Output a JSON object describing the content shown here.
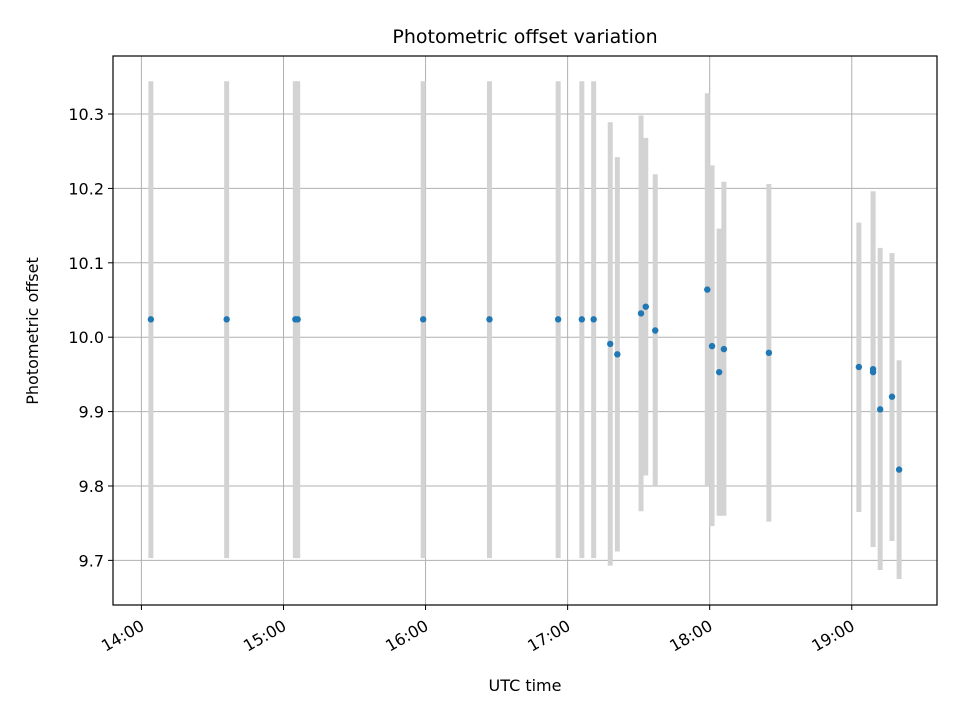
{
  "chart_data": {
    "type": "scatter",
    "title": "Photometric offset variation",
    "xlabel": "UTC time",
    "ylabel": "Photometric offset",
    "x_axis_kind": "time",
    "x_ticks": [
      "14:00",
      "15:00",
      "16:00",
      "17:00",
      "18:00",
      "19:00"
    ],
    "xlim": [
      "13:48",
      "19:36"
    ],
    "y_ticks": [
      9.7,
      9.8,
      9.9,
      10.0,
      10.1,
      10.2,
      10.3
    ],
    "ylim": [
      9.64,
      10.378
    ],
    "grid": true,
    "legend": "none",
    "colors": {
      "marker": "#1f77b4",
      "errorbar": "#d3d3d3",
      "grid": "#b0b0b0"
    },
    "points": [
      {
        "x": "14:04",
        "y": 10.024,
        "ylow": 9.703,
        "yhigh": 10.344
      },
      {
        "x": "14:36",
        "y": 10.024,
        "ylow": 9.703,
        "yhigh": 10.344
      },
      {
        "x": "15:05",
        "y": 10.024,
        "ylow": 9.703,
        "yhigh": 10.344
      },
      {
        "x": "15:06",
        "y": 10.024,
        "ylow": 9.703,
        "yhigh": 10.344
      },
      {
        "x": "15:59",
        "y": 10.024,
        "ylow": 9.703,
        "yhigh": 10.344
      },
      {
        "x": "16:27",
        "y": 10.024,
        "ylow": 9.703,
        "yhigh": 10.344
      },
      {
        "x": "16:56",
        "y": 10.024,
        "ylow": 9.703,
        "yhigh": 10.344
      },
      {
        "x": "17:06",
        "y": 10.024,
        "ylow": 9.703,
        "yhigh": 10.344
      },
      {
        "x": "17:11",
        "y": 10.024,
        "ylow": 9.703,
        "yhigh": 10.344
      },
      {
        "x": "17:18",
        "y": 9.991,
        "ylow": 9.693,
        "yhigh": 10.289
      },
      {
        "x": "17:21",
        "y": 9.977,
        "ylow": 9.712,
        "yhigh": 10.242
      },
      {
        "x": "17:31",
        "y": 10.032,
        "ylow": 9.766,
        "yhigh": 10.298
      },
      {
        "x": "17:33",
        "y": 10.041,
        "ylow": 9.814,
        "yhigh": 10.268
      },
      {
        "x": "17:37",
        "y": 10.009,
        "ylow": 9.8,
        "yhigh": 10.219
      },
      {
        "x": "17:59",
        "y": 10.064,
        "ylow": 9.8,
        "yhigh": 10.328
      },
      {
        "x": "18:01",
        "y": 9.988,
        "ylow": 9.746,
        "yhigh": 10.231
      },
      {
        "x": "18:04",
        "y": 9.953,
        "ylow": 9.76,
        "yhigh": 10.146
      },
      {
        "x": "18:06",
        "y": 9.984,
        "ylow": 9.76,
        "yhigh": 10.209
      },
      {
        "x": "18:25",
        "y": 9.979,
        "ylow": 9.752,
        "yhigh": 10.206
      },
      {
        "x": "19:03",
        "y": 9.96,
        "ylow": 9.765,
        "yhigh": 10.154
      },
      {
        "x": "19:09",
        "y": 9.953,
        "ylow": 9.718,
        "yhigh": 10.196
      },
      {
        "x": "19:09",
        "y": 9.957,
        "ylow": 9.718,
        "yhigh": 10.196
      },
      {
        "x": "19:12",
        "y": 9.903,
        "ylow": 9.687,
        "yhigh": 10.12
      },
      {
        "x": "19:17",
        "y": 9.92,
        "ylow": 9.726,
        "yhigh": 10.113
      },
      {
        "x": "19:20",
        "y": 9.822,
        "ylow": 9.675,
        "yhigh": 9.969
      }
    ]
  }
}
